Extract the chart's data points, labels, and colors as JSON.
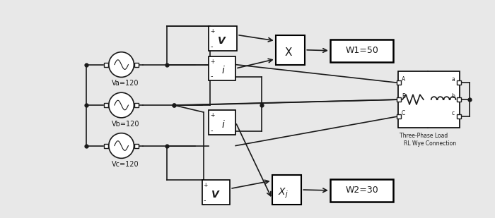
{
  "bg_color": "#e8e8e8",
  "line_color": "#1a1a1a",
  "box_color": "#ffffff",
  "box_edge": "#1a1a1a",
  "Va_label": "Va=120",
  "Vb_label": "Vb=120",
  "Vc_label": "Vc=120",
  "W1_label": "W1=50",
  "W2_label": "W2=30",
  "three_phase_label1": "Three-Phase Load",
  "three_phase_label2": "RL Wye Connection"
}
